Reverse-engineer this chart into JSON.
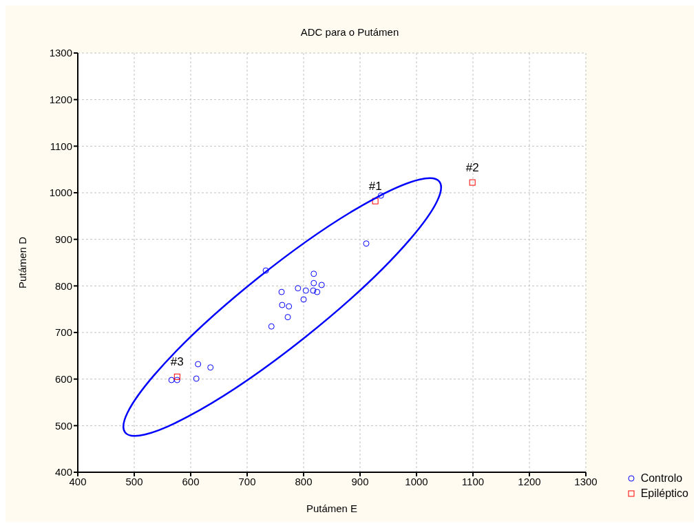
{
  "chart_data": {
    "type": "scatter",
    "title": "ADC para o Putámen",
    "xlabel": "Putámen E",
    "ylabel": "Putámen D",
    "xlim": [
      400,
      1300
    ],
    "xticks": [
      400,
      500,
      600,
      700,
      800,
      900,
      1000,
      1100,
      1200,
      1300
    ],
    "ylim": [
      400,
      1300
    ],
    "yticks": [
      400,
      500,
      600,
      700,
      800,
      900,
      1000,
      1100,
      1200,
      1300
    ],
    "grid": true,
    "legend": "bottom right",
    "series": [
      {
        "name": "Controlo",
        "color": "#0000ff",
        "marker": "circle",
        "x": [
          937,
          911,
          733,
          761,
          790,
          804,
          818,
          818,
          832,
          817,
          824,
          762,
          774,
          800,
          772,
          743,
          613,
          635,
          610,
          566,
          576
        ],
        "values": [
          994,
          891,
          833,
          787,
          795,
          790,
          826,
          806,
          802,
          790,
          787,
          759,
          756,
          771,
          733,
          713,
          632,
          625,
          601,
          598,
          598
        ]
      },
      {
        "name": "Epiléptico",
        "color": "#ff0000",
        "marker": "square",
        "x": [
          927,
          1099,
          576
        ],
        "values": [
          982,
          1022,
          605
        ]
      }
    ],
    "annotations": [
      {
        "text": "#1",
        "x": 927,
        "y": 982
      },
      {
        "text": "#2",
        "x": 1099,
        "y": 1022
      },
      {
        "text": "#3",
        "x": 576,
        "y": 605
      }
    ]
  }
}
